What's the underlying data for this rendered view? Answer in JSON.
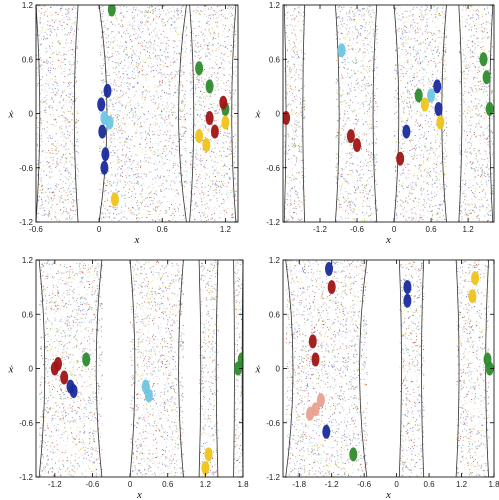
{
  "figure": {
    "chart_data": [
      {
        "type": "scatter",
        "panel": "top-left",
        "title": "",
        "xlabel": "x",
        "ylabel": "ẋ",
        "xlim": [
          -0.6,
          1.32
        ],
        "ylim": [
          -1.2,
          1.2
        ],
        "xticks": [
          "-0.6",
          "0",
          "0.6",
          "1.2"
        ],
        "yticks": [
          "-1.2",
          "-0.6",
          "0",
          "0.6",
          "1.2"
        ],
        "bands": [
          [
            -0.6,
            -0.2
          ],
          [
            0.0,
            0.83
          ],
          [
            0.86,
            1.3
          ]
        ],
        "series": [
          {
            "color": "#1a2b9c",
            "points": [
              [
                0.02,
                0.1
              ],
              [
                0.03,
                -0.2
              ],
              [
                0.06,
                -0.45
              ],
              [
                0.08,
                0.25
              ],
              [
                0.05,
                -0.6
              ]
            ]
          },
          {
            "color": "#2e8b2e",
            "points": [
              [
                0.12,
                1.15
              ],
              [
                1.05,
                0.3
              ],
              [
                1.2,
                0.05
              ],
              [
                0.95,
                0.5
              ]
            ]
          },
          {
            "color": "#f0c419",
            "points": [
              [
                0.15,
                -0.95
              ],
              [
                1.02,
                -0.35
              ],
              [
                0.95,
                -0.25
              ],
              [
                1.2,
                -0.1
              ]
            ]
          },
          {
            "color": "#a01515",
            "points": [
              [
                1.1,
                -0.2
              ],
              [
                1.05,
                -0.05
              ],
              [
                1.18,
                0.12
              ]
            ]
          },
          {
            "color": "#6ec6e0",
            "points": [
              [
                0.05,
                -0.05
              ],
              [
                0.1,
                -0.1
              ]
            ]
          }
        ]
      },
      {
        "type": "scatter",
        "panel": "top-right",
        "title": "",
        "xlabel": "x",
        "ylabel": "ẋ",
        "xlim": [
          -1.8,
          1.62
        ],
        "ylim": [
          -1.2,
          1.2
        ],
        "xticks": [
          "-1.2",
          "-0.6",
          "0",
          "0.6",
          "1.2"
        ],
        "yticks": [
          "-1.2",
          "-0.6",
          "0",
          "0.6",
          "1.2"
        ],
        "bands": [
          [
            -1.78,
            -1.45
          ],
          [
            -0.95,
            -0.28
          ],
          [
            0.0,
            0.85
          ],
          [
            1.05,
            1.6
          ]
        ],
        "series": [
          {
            "color": "#a01515",
            "points": [
              [
                -1.75,
                -0.05
              ],
              [
                -0.7,
                -0.25
              ],
              [
                -0.6,
                -0.35
              ],
              [
                0.1,
                -0.5
              ]
            ]
          },
          {
            "color": "#2e8b2e",
            "points": [
              [
                1.45,
                0.6
              ],
              [
                1.55,
                0.05
              ],
              [
                1.5,
                0.4
              ],
              [
                0.4,
                0.2
              ]
            ]
          },
          {
            "color": "#1a2b9c",
            "points": [
              [
                0.7,
                0.3
              ],
              [
                0.72,
                0.05
              ],
              [
                0.2,
                -0.2
              ]
            ]
          },
          {
            "color": "#f0c419",
            "points": [
              [
                0.75,
                -0.1
              ],
              [
                0.5,
                0.1
              ]
            ]
          },
          {
            "color": "#6ec6e0",
            "points": [
              [
                -0.85,
                0.7
              ],
              [
                0.6,
                0.2
              ]
            ]
          }
        ]
      },
      {
        "type": "scatter",
        "panel": "bottom-left",
        "title": "",
        "xlabel": "x",
        "ylabel": "ẋ",
        "xlim": [
          -1.5,
          1.8
        ],
        "ylim": [
          -1.2,
          1.2
        ],
        "xticks": [
          "-1.2",
          "-0.6",
          "0",
          "0.6",
          "1.2",
          "1.8"
        ],
        "yticks": [
          "-1.2",
          "-0.6",
          "0",
          "0.6",
          "1.2"
        ],
        "bands": [
          [
            -1.45,
            -0.45
          ],
          [
            0.0,
            0.85
          ],
          [
            1.1,
            1.4
          ],
          [
            1.65,
            1.8
          ]
        ],
        "series": [
          {
            "color": "#a01515",
            "points": [
              [
                -1.2,
                0.0
              ],
              [
                -1.15,
                0.05
              ],
              [
                -1.05,
                -0.1
              ]
            ]
          },
          {
            "color": "#1a2b9c",
            "points": [
              [
                -0.95,
                -0.2
              ],
              [
                -0.9,
                -0.25
              ]
            ]
          },
          {
            "color": "#2e8b2e",
            "points": [
              [
                1.72,
                0.0
              ],
              [
                1.78,
                0.1
              ],
              [
                -0.7,
                0.1
              ]
            ]
          },
          {
            "color": "#f0c419",
            "points": [
              [
                1.2,
                -1.1
              ],
              [
                1.25,
                -0.95
              ]
            ]
          },
          {
            "color": "#6ec6e0",
            "points": [
              [
                0.3,
                -0.3
              ],
              [
                0.25,
                -0.2
              ]
            ]
          }
        ]
      },
      {
        "type": "scatter",
        "panel": "bottom-right",
        "title": "",
        "xlabel": "x",
        "ylabel": "ẋ",
        "xlim": [
          -2.1,
          1.8
        ],
        "ylim": [
          -1.2,
          1.2
        ],
        "xticks": [
          "-1.8",
          "-1.2",
          "-0.6",
          "0",
          "0.6",
          "1.2",
          "1.8"
        ],
        "yticks": [
          "-1.2",
          "-0.6",
          "0",
          "0.6",
          "1.2"
        ],
        "bands": [
          [
            -2.05,
            -0.55
          ],
          [
            0.05,
            0.5
          ],
          [
            1.1,
            1.7
          ]
        ],
        "series": [
          {
            "color": "#1a2b9c",
            "points": [
              [
                -1.25,
                1.1
              ],
              [
                -1.3,
                -0.7
              ],
              [
                0.2,
                0.9
              ],
              [
                0.2,
                0.75
              ]
            ]
          },
          {
            "color": "#a01515",
            "points": [
              [
                -1.55,
                0.3
              ],
              [
                -1.5,
                0.1
              ],
              [
                -1.2,
                0.9
              ]
            ]
          },
          {
            "color": "#e8a090",
            "points": [
              [
                -1.5,
                -0.45
              ],
              [
                -1.4,
                -0.35
              ],
              [
                -1.6,
                -0.5
              ]
            ]
          },
          {
            "color": "#2e8b2e",
            "points": [
              [
                1.72,
                0.0
              ],
              [
                1.68,
                0.1
              ],
              [
                -0.8,
                -0.95
              ]
            ]
          },
          {
            "color": "#f0c419",
            "points": [
              [
                1.45,
                1.0
              ],
              [
                1.4,
                0.8
              ]
            ]
          }
        ]
      }
    ]
  }
}
